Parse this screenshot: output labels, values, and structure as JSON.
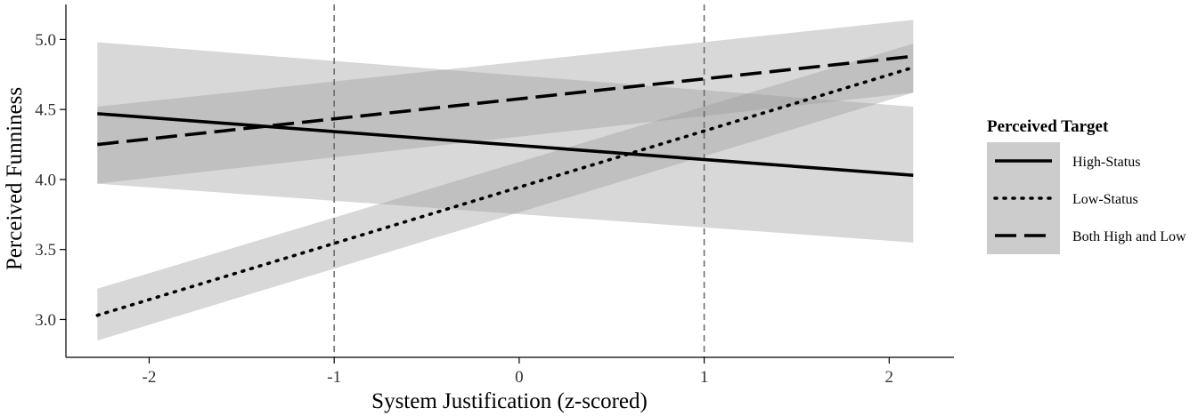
{
  "chart_data": {
    "type": "line",
    "xlabel": "System Justification (z-scored)",
    "ylabel": "Perceived Funniness",
    "xlim": [
      -2.45,
      2.35
    ],
    "ylim": [
      2.73,
      5.25
    ],
    "x_ticks": [
      -2,
      -1,
      0,
      1,
      2
    ],
    "x_tick_labels": [
      "-2",
      "-1",
      "0",
      "1",
      "2"
    ],
    "y_ticks": [
      3.0,
      3.5,
      4.0,
      4.5,
      5.0
    ],
    "y_tick_labels": [
      "3.0",
      "3.5",
      "4.0",
      "4.5",
      "5.0"
    ],
    "reference_lines_x": [
      -1,
      1
    ],
    "grid": false,
    "legend": {
      "title": "Perceived Target",
      "placement": "right"
    },
    "x_range": [
      -2.28,
      2.13
    ],
    "series": [
      {
        "name": "High-Status",
        "dash": "solid",
        "fit": [
          4.47,
          4.03
        ],
        "ci_lower": [
          3.97,
          3.55
        ],
        "ci_upper": [
          4.98,
          4.52
        ]
      },
      {
        "name": "Low-Status",
        "dash": "dotted",
        "fit": [
          3.03,
          4.8
        ],
        "ci_lower": [
          2.85,
          4.62
        ],
        "ci_upper": [
          3.22,
          4.97
        ]
      },
      {
        "name": "Both High and Low",
        "dash": "dashed",
        "fit": [
          4.25,
          4.88
        ],
        "ci_lower": [
          3.97,
          4.62
        ],
        "ci_upper": [
          4.52,
          5.14
        ]
      }
    ],
    "colors": {
      "line": "#000000",
      "ribbon": "#999999",
      "reference_line": "#666666",
      "legend_key_bg": "#cccccc"
    }
  }
}
